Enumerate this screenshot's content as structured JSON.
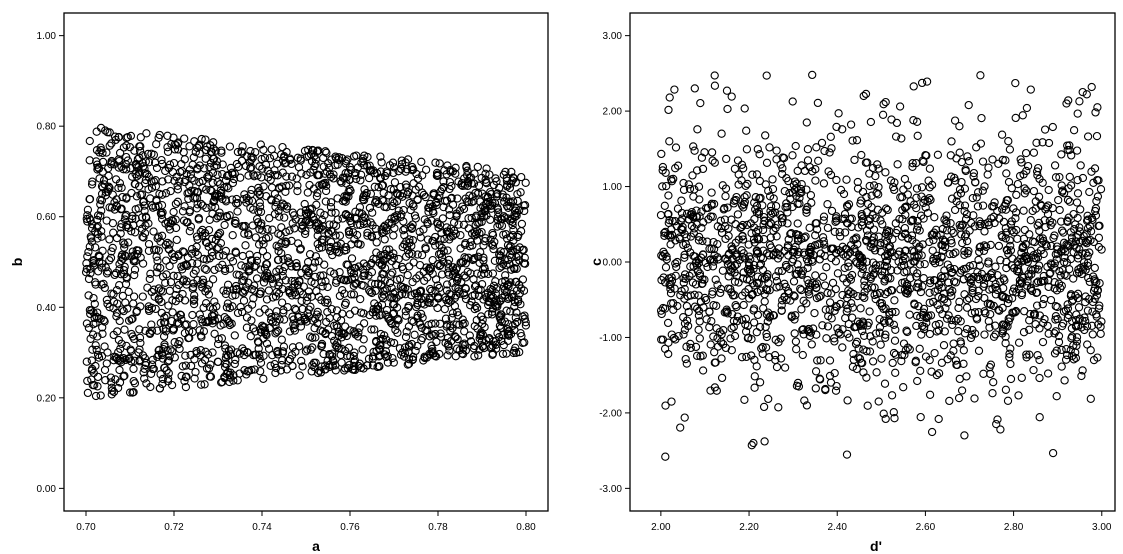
{
  "chart_data": [
    {
      "type": "scatter",
      "xlabel": "a",
      "ylabel": "b",
      "xlim": [
        0.695,
        0.805
      ],
      "ylim": [
        -0.05,
        1.05
      ],
      "x_ticks": [
        "0.70",
        "0.72",
        "0.74",
        "0.76",
        "0.78",
        "0.80"
      ],
      "x_tick_values": [
        0.7,
        0.72,
        0.74,
        0.76,
        0.78,
        0.8
      ],
      "y_ticks": [
        "0.00",
        "0.20",
        "0.40",
        "0.60",
        "0.80",
        "1.00"
      ],
      "y_tick_values": [
        0.0,
        0.2,
        0.4,
        0.6,
        0.8,
        1.0
      ],
      "grid": false,
      "marker": "open circle",
      "region": {
        "description": "dense uniform cloud bounded by a trapezoid",
        "x_range": [
          0.7,
          0.8
        ],
        "lower_edge": [
          [
            0.7,
            0.2
          ],
          [
            0.8,
            0.3
          ]
        ],
        "upper_edge": [
          [
            0.7,
            0.8
          ],
          [
            0.8,
            0.7
          ]
        ]
      },
      "approx_point_count": 2600
    },
    {
      "type": "scatter",
      "xlabel": "d'",
      "ylabel": "c",
      "xlim": [
        1.93,
        3.03
      ],
      "ylim": [
        -3.3,
        3.3
      ],
      "x_ticks": [
        "2.00",
        "2.20",
        "2.40",
        "2.60",
        "2.80",
        "3.00"
      ],
      "x_tick_values": [
        2.0,
        2.2,
        2.4,
        2.6,
        2.8,
        3.0
      ],
      "y_ticks": [
        "-3.00",
        "-2.00",
        "-1.00",
        "0.00",
        "1.00",
        "2.00",
        "3.00"
      ],
      "y_tick_values": [
        -3.0,
        -2.0,
        -1.0,
        0.0,
        1.0,
        2.0,
        3.0
      ],
      "grid": false,
      "marker": "open circle",
      "cloud": {
        "x_range": [
          2.0,
          3.0
        ],
        "center_y": 0.0,
        "approx_y_range": [
          -2.6,
          2.5
        ]
      },
      "approx_point_count": 2000,
      "outliers": [
        {
          "x": 2.01,
          "y": -2.58
        },
        {
          "x": 2.24,
          "y": 2.47
        },
        {
          "x": 2.02,
          "y": 2.18
        },
        {
          "x": 2.51,
          "y": -2.08
        },
        {
          "x": 2.53,
          "y": -2.07
        },
        {
          "x": 2.77,
          "y": -2.22
        },
        {
          "x": 2.92,
          "y": 2.1
        },
        {
          "x": 2.99,
          "y": 2.05
        },
        {
          "x": 2.15,
          "y": 2.27
        },
        {
          "x": 2.46,
          "y": 2.2
        }
      ]
    }
  ]
}
